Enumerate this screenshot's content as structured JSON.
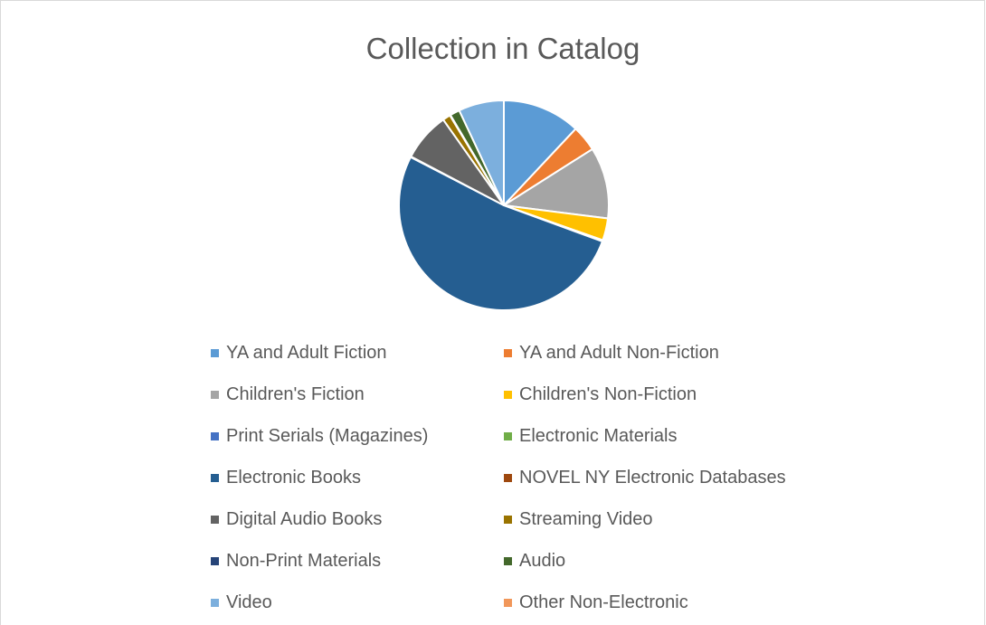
{
  "chart_data": {
    "type": "pie",
    "title": "Collection in Catalog",
    "legend_position": "bottom",
    "slices": [
      {
        "label": "YA and Adult Fiction",
        "value": 12.0,
        "color": "#5b9bd5"
      },
      {
        "label": "YA and Adult Non-Fiction",
        "value": 4.0,
        "color": "#ed7d31"
      },
      {
        "label": "Children's Fiction",
        "value": 11.0,
        "color": "#a5a5a5"
      },
      {
        "label": "Children's Non-Fiction",
        "value": 3.4,
        "color": "#ffc000"
      },
      {
        "label": "Print Serials (Magazines)",
        "value": 0.1,
        "color": "#4472c4"
      },
      {
        "label": "Electronic Materials",
        "value": 0.1,
        "color": "#70ad47"
      },
      {
        "label": "Electronic Books",
        "value": 52.0,
        "color": "#255e91"
      },
      {
        "label": "NOVEL NY Electronic Databases",
        "value": 0.1,
        "color": "#9e480e"
      },
      {
        "label": "Digital Audio Books",
        "value": 7.5,
        "color": "#636363"
      },
      {
        "label": "Streaming Video",
        "value": 1.2,
        "color": "#997300"
      },
      {
        "label": "Non-Print Materials",
        "value": 0.1,
        "color": "#264478"
      },
      {
        "label": "Audio",
        "value": 1.5,
        "color": "#43682b"
      },
      {
        "label": "Video",
        "value": 7.0,
        "color": "#7cafdd"
      },
      {
        "label": "Other Non-Electronic",
        "value": 0.0,
        "color": "#f1975a"
      }
    ]
  }
}
